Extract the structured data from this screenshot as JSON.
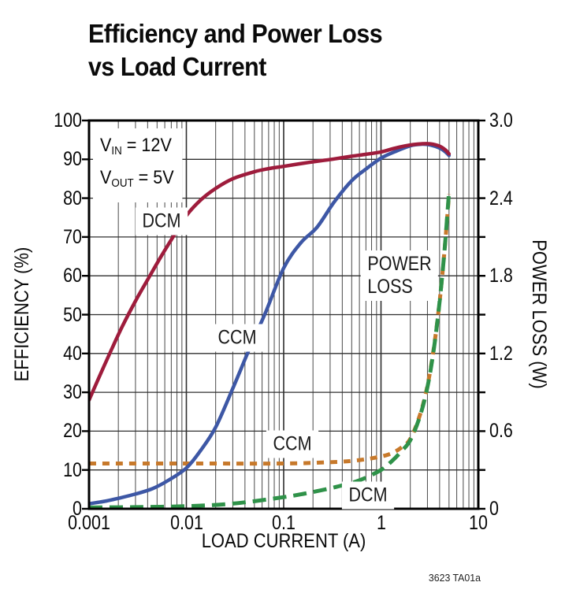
{
  "page": {
    "background": "#ffffff"
  },
  "title": {
    "line1": "Efficiency and Power Loss",
    "line2": "vs Load Current"
  },
  "chart_data": {
    "type": "line",
    "title": "Efficiency and Power Loss vs Load Current",
    "footnote": "3623 TA01a",
    "grid": {
      "on": true,
      "major_color": "#2f2f2f",
      "minor_color": "#4a4a4a",
      "frame_color": "#000000"
    },
    "x_axis": {
      "label": "LOAD CURRENT (A)",
      "scale": "log",
      "range": [
        0.001,
        10
      ],
      "tick_values": [
        0.001,
        0.01,
        0.1,
        1,
        10
      ],
      "tick_labels": [
        "0.001",
        "0.01",
        "0.1",
        "1",
        "10"
      ]
    },
    "y_axis_left": {
      "label": "EFFICIENCY (%)",
      "range": [
        0,
        100
      ],
      "grid_step": 10,
      "tick_values": [
        100,
        90,
        80,
        70,
        60,
        50,
        40,
        30,
        20,
        10,
        0
      ],
      "tick_labels": [
        "100",
        "90",
        "80",
        "70",
        "60",
        "50",
        "40",
        "30",
        "20",
        "10",
        "0"
      ]
    },
    "y_axis_right": {
      "label": "POWER LOSS (W)",
      "range": [
        0,
        3.0
      ],
      "minor_tick_step": 0.3,
      "tick_values": [
        3.0,
        2.4,
        1.8,
        1.2,
        0.6,
        0
      ],
      "tick_labels": [
        "3.0",
        "2.4",
        "1.8",
        "1.2",
        "0.6",
        "0"
      ]
    },
    "conditions": [
      {
        "base": "V",
        "sub": "IN",
        "rest": " = 12V"
      },
      {
        "base": "V",
        "sub": "OUT",
        "rest": " = 5V"
      }
    ],
    "series": [
      {
        "name": "CCM power loss",
        "label": "CCM",
        "axis": "right",
        "color": "#c7792b",
        "style": "dotted",
        "dash": [
          9,
          8
        ],
        "width": 5,
        "x": [
          0.001,
          0.01,
          0.1,
          0.3,
          0.5,
          0.8,
          1.2,
          1.6,
          2,
          2.5,
          3,
          3.5,
          4,
          4.5,
          5
        ],
        "y": [
          0.35,
          0.35,
          0.35,
          0.36,
          0.37,
          0.39,
          0.42,
          0.47,
          0.54,
          0.72,
          0.95,
          1.25,
          1.6,
          2.0,
          2.43
        ]
      },
      {
        "name": "DCM power loss",
        "label": "DCM",
        "axis": "right",
        "color": "#2f9249",
        "style": "dashed",
        "dash": [
          17,
          9
        ],
        "width": 5,
        "x": [
          0.001,
          0.003,
          0.01,
          0.03,
          0.1,
          0.2,
          0.35,
          0.6,
          1,
          1.3,
          1.6,
          2,
          2.5,
          3,
          3.5,
          4,
          4.5,
          5
        ],
        "y": [
          0.01,
          0.013,
          0.02,
          0.04,
          0.09,
          0.13,
          0.17,
          0.22,
          0.3,
          0.37,
          0.44,
          0.53,
          0.71,
          0.94,
          1.24,
          1.6,
          2.0,
          2.45
        ]
      },
      {
        "name": "CCM efficiency",
        "label": "CCM",
        "axis": "left",
        "color": "#3d57a5",
        "style": "solid",
        "dash": null,
        "width": 4.5,
        "x": [
          0.001,
          0.0015,
          0.002,
          0.003,
          0.0045,
          0.0065,
          0.01,
          0.014,
          0.02,
          0.03,
          0.045,
          0.065,
          0.1,
          0.15,
          0.22,
          0.33,
          0.5,
          0.7,
          1,
          1.4,
          2,
          2.6,
          3.2,
          4,
          4.6,
          5
        ],
        "y": [
          1.3,
          2,
          2.7,
          3.8,
          5.2,
          7.3,
          10.5,
          15,
          21,
          31,
          41.5,
          50.5,
          62,
          68.5,
          72.5,
          79,
          84.5,
          87.5,
          90.3,
          92,
          93.5,
          93.9,
          93.7,
          92.9,
          91.9,
          91
        ]
      },
      {
        "name": "DCM efficiency",
        "label": "DCM",
        "axis": "left",
        "color": "#9e1c3c",
        "style": "solid",
        "dash": null,
        "width": 4.5,
        "x": [
          0.001,
          0.0013,
          0.0017,
          0.0022,
          0.003,
          0.004,
          0.0055,
          0.0075,
          0.01,
          0.014,
          0.02,
          0.03,
          0.05,
          0.07,
          0.1,
          0.15,
          0.22,
          0.33,
          0.5,
          0.7,
          1,
          1.4,
          2,
          2.6,
          3.2,
          4,
          4.6,
          5
        ],
        "y": [
          28,
          34.5,
          41,
          47,
          53.5,
          59,
          65,
          70.5,
          75.5,
          79.5,
          82.5,
          85,
          86.8,
          87.6,
          88.2,
          88.9,
          89.5,
          90.1,
          90.8,
          91.3,
          91.9,
          92.9,
          93.7,
          94,
          94,
          93.4,
          92.4,
          91.4
        ]
      }
    ],
    "curve_labels": [
      {
        "text": "DCM",
        "x": 0.0056,
        "y": 74,
        "for": "DCM efficiency"
      },
      {
        "text": "CCM",
        "x": 0.033,
        "y": 44,
        "for": "CCM efficiency"
      },
      {
        "text": "POWER\nLOSS",
        "x": 1.55,
        "y": 60,
        "for": "power loss curves"
      },
      {
        "text": "CCM",
        "x": 0.123,
        "y": 16.6,
        "for": "CCM power loss"
      },
      {
        "text": "DCM",
        "x": 0.73,
        "y": 3.4,
        "for": "DCM power loss"
      }
    ]
  }
}
